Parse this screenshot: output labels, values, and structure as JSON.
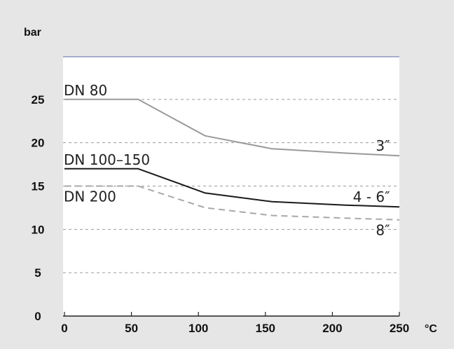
{
  "chart_data": {
    "type": "line",
    "title": "",
    "ylabel": "bar",
    "xlabel": "°C",
    "xlim": [
      0,
      250
    ],
    "ylim": [
      0,
      30
    ],
    "x_ticks": [
      0,
      50,
      100,
      150,
      200,
      250
    ],
    "y_ticks": [
      0,
      5,
      10,
      15,
      20,
      25
    ],
    "grid": {
      "horizontal": "dashed",
      "vertical": false
    },
    "series": [
      {
        "name": "",
        "style": "solid",
        "color": "#9a9a9a",
        "x": [
          0,
          55,
          105,
          155,
          210,
          250
        ],
        "y": [
          25,
          25,
          20.8,
          19.3,
          18.8,
          18.5
        ]
      },
      {
        "name": "",
        "style": "solid",
        "color": "#1a1a1a",
        "x": [
          0,
          55,
          105,
          155,
          210,
          250
        ],
        "y": [
          17,
          17,
          14.2,
          13.2,
          12.8,
          12.6
        ]
      },
      {
        "name": "",
        "style": "dashed",
        "color": "#a8a8a8",
        "x": [
          0,
          55,
          105,
          155,
          210,
          250
        ],
        "y": [
          15,
          15,
          12.5,
          11.6,
          11.3,
          11.1
        ]
      }
    ],
    "annotations": [
      {
        "text": "DN 80",
        "x": 0,
        "y": 25,
        "anchor": "start",
        "pos": "above"
      },
      {
        "text": "DN 100–150",
        "x": 0,
        "y": 17,
        "anchor": "start",
        "pos": "above"
      },
      {
        "text": "DN 200",
        "x": 0,
        "y": 15,
        "anchor": "start",
        "pos": "below"
      },
      {
        "text": "3″",
        "x": 243,
        "y": 18.6,
        "anchor": "end",
        "pos": "above"
      },
      {
        "text": "4 - 6″",
        "x": 243,
        "y": 12.7,
        "anchor": "end",
        "pos": "above"
      },
      {
        "text": "8″",
        "x": 243,
        "y": 11.1,
        "anchor": "end",
        "pos": "below"
      }
    ],
    "colors": {
      "background": "#e6e6e6",
      "plot_background": "#ffffff",
      "grid": "#9a9a9a",
      "axis": "#222222",
      "top_border": "#5a6aa8"
    }
  }
}
